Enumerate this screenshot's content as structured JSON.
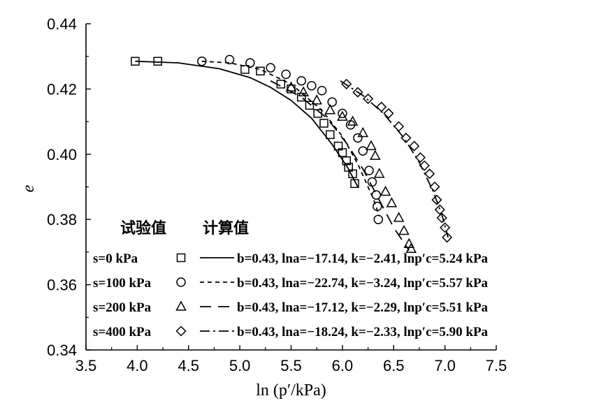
{
  "chart_data": {
    "type": "scatter",
    "title": "",
    "xlabel": "ln (p′/kPa)",
    "ylabel": "e",
    "xlim": [
      3.5,
      7.5
    ],
    "ylim": [
      0.34,
      0.44
    ],
    "xticks": [
      "3.5",
      "4.0",
      "4.5",
      "5.0",
      "5.5",
      "6.0",
      "6.5",
      "7.0",
      "7.5"
    ],
    "yticks": [
      "0.34",
      "0.36",
      "0.38",
      "0.40",
      "0.42",
      "0.44"
    ],
    "grid": false,
    "legend_position": "bottom-left",
    "legend_headers": [
      "试验值",
      "计算值"
    ],
    "series": [
      {
        "name": "s=0 kPa",
        "marker": "square",
        "line_style": "solid",
        "params": "b=0.43, lna=−17.14, k=−2.41, lnp′c=5.24 kPa",
        "points": [
          [
            3.98,
            0.4285
          ],
          [
            4.2,
            0.4285
          ],
          [
            5.05,
            0.426
          ],
          [
            5.2,
            0.4255
          ],
          [
            5.4,
            0.4215
          ],
          [
            5.5,
            0.42
          ],
          [
            5.6,
            0.4175
          ],
          [
            5.68,
            0.415
          ],
          [
            5.76,
            0.4125
          ],
          [
            5.82,
            0.4095
          ],
          [
            5.88,
            0.406
          ],
          [
            5.96,
            0.4025
          ],
          [
            6.0,
            0.4005
          ],
          [
            6.04,
            0.398
          ],
          [
            6.06,
            0.396
          ],
          [
            6.1,
            0.394
          ],
          [
            6.12,
            0.391
          ]
        ],
        "curve": [
          [
            3.98,
            0.4285
          ],
          [
            4.4,
            0.428
          ],
          [
            4.8,
            0.4262
          ],
          [
            5.1,
            0.4235
          ],
          [
            5.3,
            0.4205
          ],
          [
            5.5,
            0.4165
          ],
          [
            5.7,
            0.411
          ],
          [
            5.9,
            0.403
          ],
          [
            6.05,
            0.396
          ],
          [
            6.15,
            0.39
          ]
        ]
      },
      {
        "name": "s=100 kPa",
        "marker": "circle",
        "line_style": "short-dash",
        "params": "b=0.43, lna=−22.74, k=−3.24, lnp′c=5.57 kPa",
        "points": [
          [
            4.63,
            0.4285
          ],
          [
            4.9,
            0.429
          ],
          [
            5.1,
            0.428
          ],
          [
            5.3,
            0.4265
          ],
          [
            5.45,
            0.4245
          ],
          [
            5.6,
            0.4225
          ],
          [
            5.7,
            0.421
          ],
          [
            5.8,
            0.4195
          ],
          [
            5.9,
            0.416
          ],
          [
            6.0,
            0.4125
          ],
          [
            6.08,
            0.409
          ],
          [
            6.15,
            0.405
          ],
          [
            6.2,
            0.401
          ],
          [
            6.26,
            0.395
          ],
          [
            6.29,
            0.3915
          ],
          [
            6.33,
            0.3875
          ],
          [
            6.34,
            0.384
          ],
          [
            6.35,
            0.38
          ]
        ],
        "curve": [
          [
            4.63,
            0.4285
          ],
          [
            4.9,
            0.428
          ],
          [
            5.2,
            0.426
          ],
          [
            5.5,
            0.4215
          ],
          [
            5.8,
            0.4135
          ],
          [
            6.0,
            0.4055
          ],
          [
            6.15,
            0.397
          ],
          [
            6.3,
            0.3865
          ],
          [
            6.36,
            0.381
          ]
        ]
      },
      {
        "name": "s=200 kPa",
        "marker": "triangle",
        "line_style": "long-dash",
        "params": "b=0.43, lna=−17.12, k=−2.29, lnp′c=5.51 kPa",
        "points": [
          [
            5.5,
            0.4205
          ],
          [
            5.62,
            0.419
          ],
          [
            5.75,
            0.4165
          ],
          [
            5.88,
            0.4135
          ],
          [
            6.0,
            0.4115
          ],
          [
            6.1,
            0.41
          ],
          [
            6.2,
            0.4065
          ],
          [
            6.28,
            0.4025
          ],
          [
            6.32,
            0.3995
          ],
          [
            6.36,
            0.394
          ],
          [
            6.42,
            0.3885
          ],
          [
            6.48,
            0.385
          ],
          [
            6.55,
            0.3805
          ],
          [
            6.6,
            0.3765
          ],
          [
            6.65,
            0.3725
          ],
          [
            6.67,
            0.371
          ]
        ],
        "curve": [
          [
            5.3,
            0.4225
          ],
          [
            5.6,
            0.4175
          ],
          [
            5.85,
            0.411
          ],
          [
            6.05,
            0.403
          ],
          [
            6.2,
            0.3955
          ],
          [
            6.35,
            0.3865
          ],
          [
            6.5,
            0.3775
          ],
          [
            6.65,
            0.3705
          ]
        ]
      },
      {
        "name": "s=400 kPa",
        "marker": "diamond",
        "line_style": "dash-dot",
        "params": "b=0.43, lna=−18.24, k=−2.33, lnp′c=5.90 kPa",
        "points": [
          [
            6.04,
            0.4215
          ],
          [
            6.15,
            0.419
          ],
          [
            6.25,
            0.417
          ],
          [
            6.38,
            0.4145
          ],
          [
            6.45,
            0.4125
          ],
          [
            6.55,
            0.4085
          ],
          [
            6.62,
            0.405
          ],
          [
            6.7,
            0.4025
          ],
          [
            6.76,
            0.399
          ],
          [
            6.8,
            0.3965
          ],
          [
            6.85,
            0.394
          ],
          [
            6.9,
            0.39
          ],
          [
            6.92,
            0.386
          ],
          [
            6.95,
            0.383
          ],
          [
            6.97,
            0.3805
          ],
          [
            7.0,
            0.3775
          ],
          [
            7.02,
            0.3745
          ]
        ],
        "curve": [
          [
            5.98,
            0.4225
          ],
          [
            6.2,
            0.418
          ],
          [
            6.4,
            0.4125
          ],
          [
            6.6,
            0.405
          ],
          [
            6.75,
            0.3975
          ],
          [
            6.88,
            0.389
          ],
          [
            6.97,
            0.3815
          ],
          [
            7.03,
            0.3745
          ]
        ]
      }
    ]
  }
}
